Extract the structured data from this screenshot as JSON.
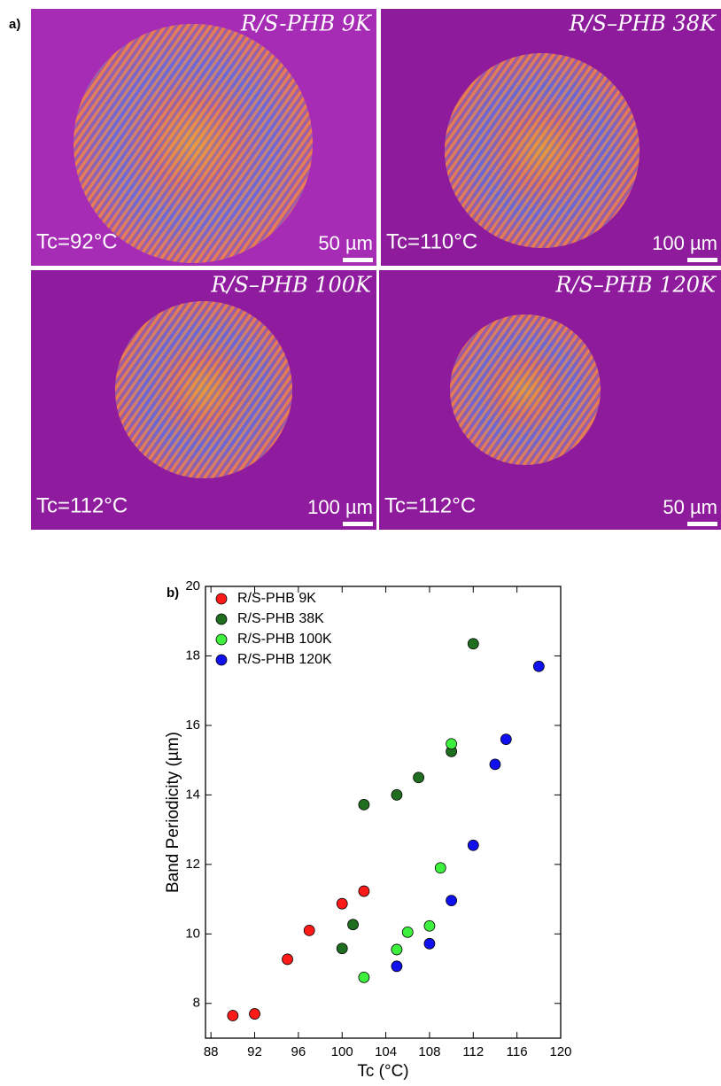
{
  "panels": {
    "a": "a)",
    "b": "b)"
  },
  "micrographs": [
    {
      "sample": "R/S-PHB 9K",
      "temperature": "Tc=92°C",
      "scale_bar": "50 µm"
    },
    {
      "sample": "R/S–PHB 38K",
      "temperature": "Tc=110°C",
      "scale_bar": "100 µm"
    },
    {
      "sample": "R/S–PHB 100K",
      "temperature": "Tc=112°C",
      "scale_bar": "100 µm"
    },
    {
      "sample": "R/S–PHB 120K",
      "temperature": "Tc=112°C",
      "scale_bar": "50 µm"
    }
  ],
  "chart_data": {
    "type": "scatter",
    "xlabel": "Tc (°C)",
    "ylabel": "Band Periodicity (µm)",
    "xlim": [
      87.5,
      120
    ],
    "xticks": [
      88,
      92,
      96,
      100,
      104,
      108,
      112,
      116,
      120
    ],
    "ylim": [
      7,
      20
    ],
    "yticks": [
      8,
      10,
      12,
      14,
      16,
      18,
      20
    ],
    "legend": "upper left",
    "series": [
      {
        "name": "R/S-PHB 9K",
        "color": "#ff1a1a",
        "x": [
          90,
          92,
          95,
          97,
          100,
          102
        ],
        "values": [
          7.65,
          7.7,
          9.27,
          10.1,
          10.87,
          11.23
        ]
      },
      {
        "name": "R/S-PHB 38K",
        "color": "#1f6e1f",
        "x": [
          100,
          101,
          102,
          105,
          107,
          110,
          112
        ],
        "values": [
          9.58,
          10.27,
          13.72,
          14.0,
          14.5,
          15.25,
          18.35
        ]
      },
      {
        "name": "R/S-PHB 100K",
        "color": "#3df03d",
        "x": [
          102,
          105,
          106,
          108,
          109,
          110
        ],
        "values": [
          8.75,
          9.55,
          10.05,
          10.23,
          11.9,
          15.47
        ]
      },
      {
        "name": "R/S-PHB 120K",
        "color": "#1010ee",
        "x": [
          105,
          108,
          110,
          112,
          114,
          115,
          118
        ],
        "values": [
          9.07,
          9.72,
          10.96,
          12.55,
          14.88,
          15.6,
          17.7
        ]
      }
    ]
  }
}
